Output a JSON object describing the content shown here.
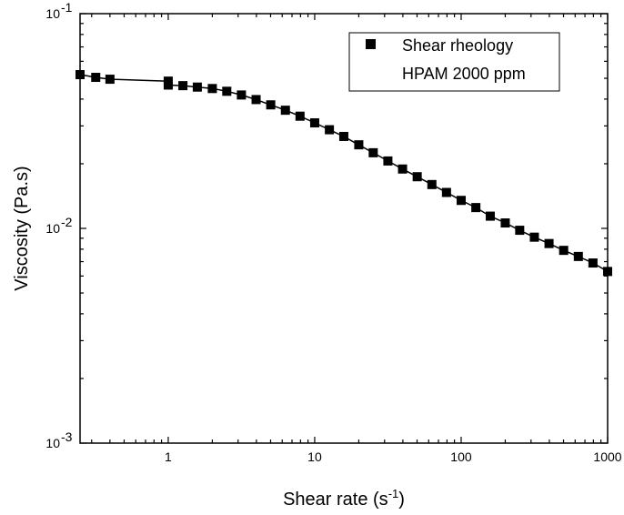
{
  "chart_data": {
    "type": "scatter",
    "x_scale": "log",
    "y_scale": "log",
    "xlim": [
      0.25,
      1000
    ],
    "ylim": [
      0.001,
      0.1
    ],
    "xlabel": "Shear rate",
    "xlabel_unit": "(s",
    "xlabel_sup": "-1",
    "xlabel_close": ")",
    "ylabel": "Viscosity (Pa.s)",
    "x_ticks": [
      {
        "value": 1,
        "label": "1"
      },
      {
        "value": 10,
        "label": "10"
      },
      {
        "value": 100,
        "label": "100"
      },
      {
        "value": 1000,
        "label": "1000"
      }
    ],
    "y_ticks": [
      {
        "value": 0.001,
        "base": "10",
        "exp": "-3"
      },
      {
        "value": 0.01,
        "base": "10",
        "exp": "-2"
      },
      {
        "value": 0.1,
        "base": "10",
        "exp": "-1"
      }
    ],
    "legend": {
      "position": "top-right",
      "entries": [
        "Shear rheology",
        "HPAM 2000 ppm"
      ]
    },
    "grid": false,
    "series": [
      {
        "name": "Shear rheology HPAM 2000 ppm",
        "marker": "square",
        "color": "#000000",
        "line": true,
        "x": [
          0.25,
          0.32,
          0.4,
          1.0,
          1.0,
          1.26,
          1.58,
          2.0,
          2.51,
          3.16,
          3.98,
          5.01,
          6.31,
          7.94,
          10,
          12.6,
          15.8,
          20,
          25.1,
          31.6,
          39.8,
          50.1,
          63.1,
          79.4,
          100,
          126,
          158,
          200,
          251,
          316,
          398,
          501,
          631,
          794,
          1000
        ],
        "y": [
          0.052,
          0.0505,
          0.0495,
          0.0485,
          0.0465,
          0.0462,
          0.0455,
          0.0448,
          0.0435,
          0.0418,
          0.0398,
          0.0376,
          0.0355,
          0.0333,
          0.031,
          0.0288,
          0.0268,
          0.0245,
          0.0225,
          0.0206,
          0.0189,
          0.0174,
          0.016,
          0.0147,
          0.0135,
          0.0125,
          0.0114,
          0.0106,
          0.0098,
          0.0091,
          0.0085,
          0.0079,
          0.0074,
          0.0069,
          0.0063
        ]
      }
    ]
  }
}
